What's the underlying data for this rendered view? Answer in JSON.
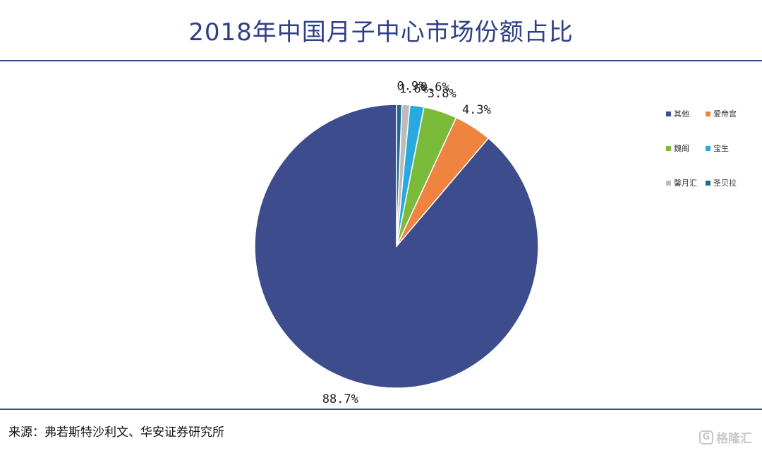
{
  "chart_data": {
    "type": "pie",
    "title": "2018年中国月子中心市场份额占比",
    "categories": [
      "其他",
      "爱帝宫",
      "魏阁",
      "宝生",
      "馨月汇",
      "圣贝拉"
    ],
    "values": [
      88.7,
      4.3,
      3.8,
      1.6,
      0.9,
      0.6
    ],
    "labels": [
      "88.7%",
      "4.3%",
      "3.8%",
      "1.6%",
      "0.9%",
      "0.6%"
    ],
    "colors": [
      "#3d4c8d",
      "#ee8440",
      "#7bbb3a",
      "#2aa9df",
      "#bcbcbc",
      "#1f6b93"
    ],
    "start": "12 o'clock, counter-clockwise",
    "legend_position": "right"
  },
  "source": "来源：弗若斯特沙利文、华安证券研究所",
  "watermark": {
    "icon": "G",
    "text": "格隆汇"
  }
}
